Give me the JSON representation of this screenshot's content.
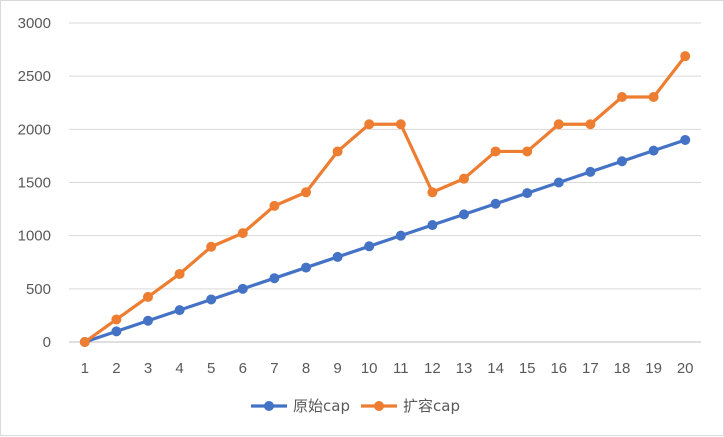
{
  "chart_data": {
    "type": "line",
    "title": "",
    "xlabel": "",
    "ylabel": "",
    "categories": [
      1,
      2,
      3,
      4,
      5,
      6,
      7,
      8,
      9,
      10,
      11,
      12,
      13,
      14,
      15,
      16,
      17,
      18,
      19,
      20
    ],
    "ylim": [
      0,
      3000
    ],
    "yticks": [
      0,
      500,
      1000,
      1500,
      2000,
      2500,
      3000
    ],
    "grid": "horizontal",
    "legend_position": "bottom",
    "series": [
      {
        "name": "原始cap",
        "color": "#4472c4",
        "values": [
          0,
          100,
          200,
          300,
          400,
          500,
          600,
          700,
          800,
          900,
          1000,
          1100,
          1200,
          1300,
          1400,
          1500,
          1600,
          1700,
          1800,
          1900
        ]
      },
      {
        "name": "扩容cap",
        "color": "#ed7d31",
        "values": [
          0,
          212,
          424,
          640,
          896,
          1024,
          1280,
          1408,
          1792,
          2048,
          2048,
          1408,
          1536,
          1792,
          1792,
          2048,
          2048,
          2304,
          2304,
          2688
        ]
      }
    ]
  }
}
